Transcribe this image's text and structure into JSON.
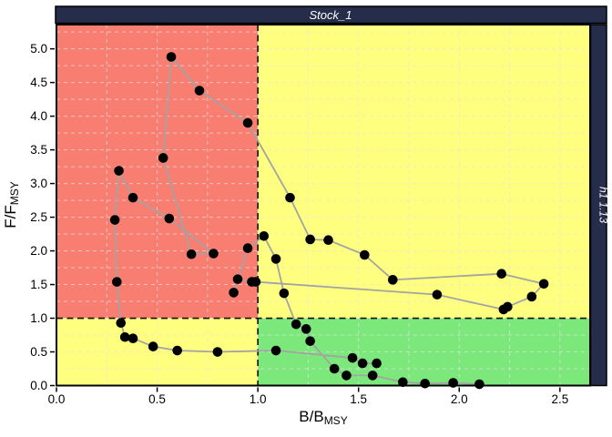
{
  "chart_data": {
    "type": "scatter",
    "title": "Stock_1",
    "right_strip_label": "h1 1.13",
    "xlabel_main": "B/B",
    "xlabel_sub": "MSY",
    "ylabel_main": "F/F",
    "ylabel_sub": "MSY",
    "xlim": [
      0,
      2.65
    ],
    "ylim": [
      0,
      5.36
    ],
    "xticks": [
      "0.0",
      "0.5",
      "1.0",
      "1.5",
      "2.0",
      "2.5"
    ],
    "yticks": [
      "0.0",
      "0.5",
      "1.0",
      "1.5",
      "2.0",
      "2.5",
      "3.0",
      "3.5",
      "4.0",
      "4.5",
      "5.0"
    ],
    "grid_step": 0.25,
    "grid_on": true,
    "reference_lines": {
      "bmsy": 1.0,
      "fmsy": 1.0
    },
    "legend_position": "none",
    "trajectory_B_F": [
      [
        2.1,
        0.02
      ],
      [
        1.97,
        0.04
      ],
      [
        1.83,
        0.03
      ],
      [
        1.72,
        0.05
      ],
      [
        1.57,
        0.15
      ],
      [
        1.44,
        0.15
      ],
      [
        1.38,
        0.25
      ],
      [
        1.26,
        0.66
      ],
      [
        1.24,
        0.84
      ],
      [
        1.19,
        0.91
      ],
      [
        1.13,
        1.37
      ],
      [
        1.09,
        1.88
      ],
      [
        1.03,
        2.22
      ],
      [
        0.95,
        2.04
      ],
      [
        0.88,
        1.38
      ],
      [
        0.9,
        1.58
      ],
      [
        0.97,
        1.54
      ],
      [
        0.99,
        1.54
      ],
      [
        1.89,
        1.35
      ],
      [
        2.22,
        1.13
      ],
      [
        2.24,
        1.17
      ],
      [
        2.36,
        1.32
      ],
      [
        2.42,
        1.51
      ],
      [
        2.21,
        1.66
      ],
      [
        1.67,
        1.57
      ],
      [
        1.53,
        1.94
      ],
      [
        1.35,
        2.16
      ],
      [
        1.26,
        2.17
      ],
      [
        1.16,
        2.79
      ],
      [
        0.95,
        3.9
      ],
      [
        0.71,
        4.38
      ],
      [
        0.57,
        4.88
      ],
      [
        0.53,
        3.38
      ],
      [
        0.67,
        1.95
      ],
      [
        0.78,
        1.96
      ],
      [
        0.56,
        2.48
      ],
      [
        0.38,
        2.79
      ],
      [
        0.31,
        3.19
      ],
      [
        0.29,
        2.46
      ],
      [
        0.3,
        1.54
      ],
      [
        0.32,
        0.93
      ],
      [
        0.34,
        0.72
      ],
      [
        0.38,
        0.7
      ],
      [
        0.48,
        0.58
      ],
      [
        0.6,
        0.52
      ],
      [
        0.8,
        0.5
      ],
      [
        1.09,
        0.52
      ],
      [
        1.47,
        0.41
      ],
      [
        1.52,
        0.33
      ],
      [
        1.59,
        0.33
      ]
    ]
  },
  "colors": {
    "strip_background": "#262d4a",
    "strip_text": "#ffffff",
    "quadrant_top_left": "#f87e72",
    "quadrant_top_right": "#ffff7f",
    "quadrant_bottom_left": "#ffff7f",
    "quadrant_bottom_right": "#7ce87c",
    "trajectory_line": "#a3a3a3",
    "point_fill": "#000000",
    "reference_dash": "#111111",
    "gridline": "rgba(228,228,228,0.65)",
    "axis_text": "#000000",
    "plot_border": "#000000"
  }
}
